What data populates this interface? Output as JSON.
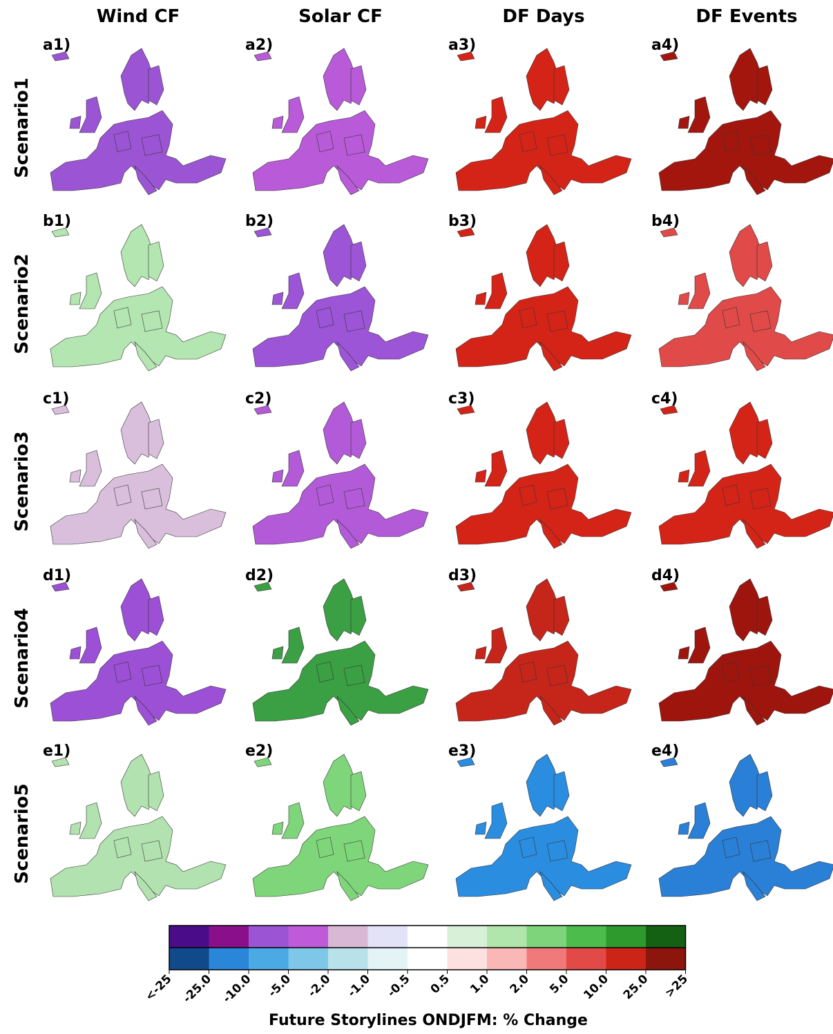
{
  "columns": [
    "Wind CF",
    "Solar CF",
    "DF Days",
    "DF Events"
  ],
  "rows": [
    "Scenario1",
    "Scenario2",
    "Scenario3",
    "Scenario4",
    "Scenario5"
  ],
  "panels": [
    [
      {
        "label": "a1)",
        "color": "#9b55d4"
      },
      {
        "label": "a2)",
        "color": "#b95ad8"
      },
      {
        "label": "a3)",
        "color": "#d42418"
      },
      {
        "label": "a4)",
        "color": "#a3160e"
      }
    ],
    [
      {
        "label": "b1)",
        "color": "#b3e6b0"
      },
      {
        "label": "b2)",
        "color": "#9c55d6"
      },
      {
        "label": "b3)",
        "color": "#d42418"
      },
      {
        "label": "b4)",
        "color": "#e04a48"
      }
    ],
    [
      {
        "label": "c1)",
        "color": "#d9bfdc"
      },
      {
        "label": "c2)",
        "color": "#b35ad8"
      },
      {
        "label": "c3)",
        "color": "#d42418"
      },
      {
        "label": "c4)",
        "color": "#d42418"
      }
    ],
    [
      {
        "label": "d1)",
        "color": "#9b50d6"
      },
      {
        "label": "d2)",
        "color": "#3aa043"
      },
      {
        "label": "d3)",
        "color": "#c6251a"
      },
      {
        "label": "d4)",
        "color": "#9e150e"
      }
    ],
    [
      {
        "label": "e1)",
        "color": "#b2e2b0"
      },
      {
        "label": "e2)",
        "color": "#7fd67a"
      },
      {
        "label": "e3)",
        "color": "#2a8de0"
      },
      {
        "label": "e4)",
        "color": "#2a7fd6"
      }
    ]
  ],
  "colorbar": {
    "title": "Future Storylines ONDJFM: % Change",
    "top_colors": [
      "#4b0c8a",
      "#8a0f8a",
      "#9b55d4",
      "#bf5ad9",
      "#d9b8d6",
      "#e3e3f7",
      "#ffffff",
      "#d8f0d8",
      "#b0e6ab",
      "#7dd47a",
      "#4cbd4c",
      "#2e9a2e",
      "#146114"
    ],
    "bottom_colors": [
      "#104a8a",
      "#2a86d8",
      "#4ba9e3",
      "#7fc7e8",
      "#b9e1ea",
      "#e3f3f6",
      "#ffffff",
      "#fde0e0",
      "#f9b7b6",
      "#f07a79",
      "#e24a47",
      "#cc2416",
      "#8c150e"
    ],
    "ticks": [
      "<-25",
      "-25.0",
      "-10.0",
      "-5.0",
      "-2.0",
      "-1.0",
      "-0.5",
      "0.5",
      "1.0",
      "2.0",
      "5.0",
      "10.0",
      "25.0",
      ">25"
    ]
  }
}
